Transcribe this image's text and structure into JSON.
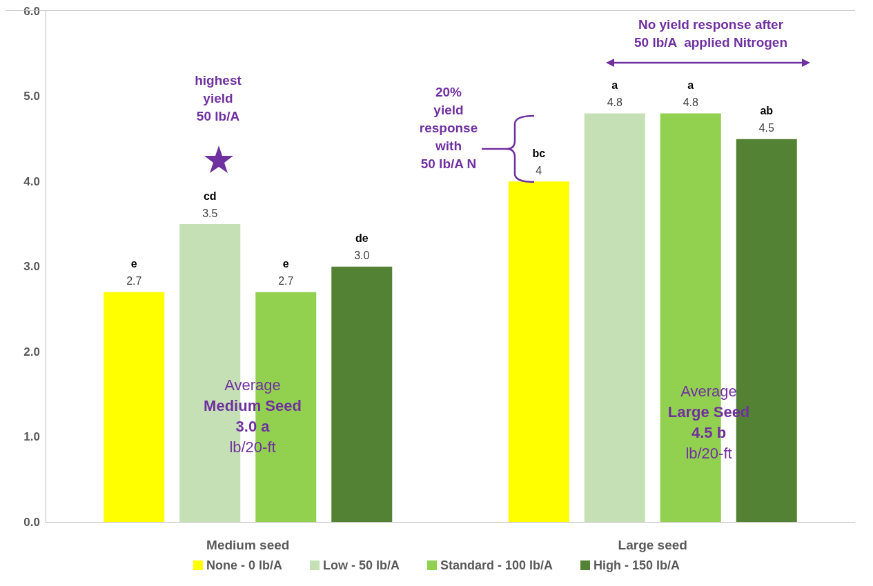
{
  "chart_data": {
    "type": "bar",
    "categories": [
      "Medium seed",
      "Large seed"
    ],
    "series": [
      {
        "name": "None - 0 lb/A",
        "color": "#ffff00",
        "values": [
          2.7,
          4
        ],
        "value_labels": [
          "2.7",
          "4"
        ]
      },
      {
        "name": "Low - 50 lb/A",
        "color": "#c5e0b4",
        "values": [
          3.5,
          4.8
        ],
        "value_labels": [
          "3.5",
          "4.8"
        ]
      },
      {
        "name": "Standard - 100 lb/A",
        "color": "#92d050",
        "values": [
          2.7,
          4.8
        ],
        "value_labels": [
          "2.7",
          "4.8"
        ]
      },
      {
        "name": "High - 150 lb/A",
        "color": "#548235",
        "values": [
          3.0,
          4.5
        ],
        "value_labels": [
          "3.0",
          "4.5"
        ]
      }
    ],
    "ylim": [
      0,
      6
    ],
    "yticks": [
      {
        "value": 0,
        "label": "0.0"
      },
      {
        "value": 1,
        "label": "1.0"
      },
      {
        "value": 2,
        "label": "2.0"
      },
      {
        "value": 3,
        "label": "3.0"
      },
      {
        "value": 4,
        "label": "4.0"
      },
      {
        "value": 5,
        "label": "5.0"
      },
      {
        "value": 6,
        "label": "6.0"
      }
    ],
    "grid": false,
    "legend": "bottom",
    "annotations": [
      "e",
      "cd",
      "e",
      "de",
      "bc",
      "a",
      "a",
      "ab",
      "highest\nyield\n50 lb/A",
      "20%\nyield\nresponse\nwith\n50 lb/A N",
      "No yield response after\n50 lb/A  applied Nitrogen",
      "Average\nMedium Seed\n3.0 a\nlb/20-ft",
      "Average\nLarge Seed\n4.5 b\nlb/20-ft"
    ]
  }
}
